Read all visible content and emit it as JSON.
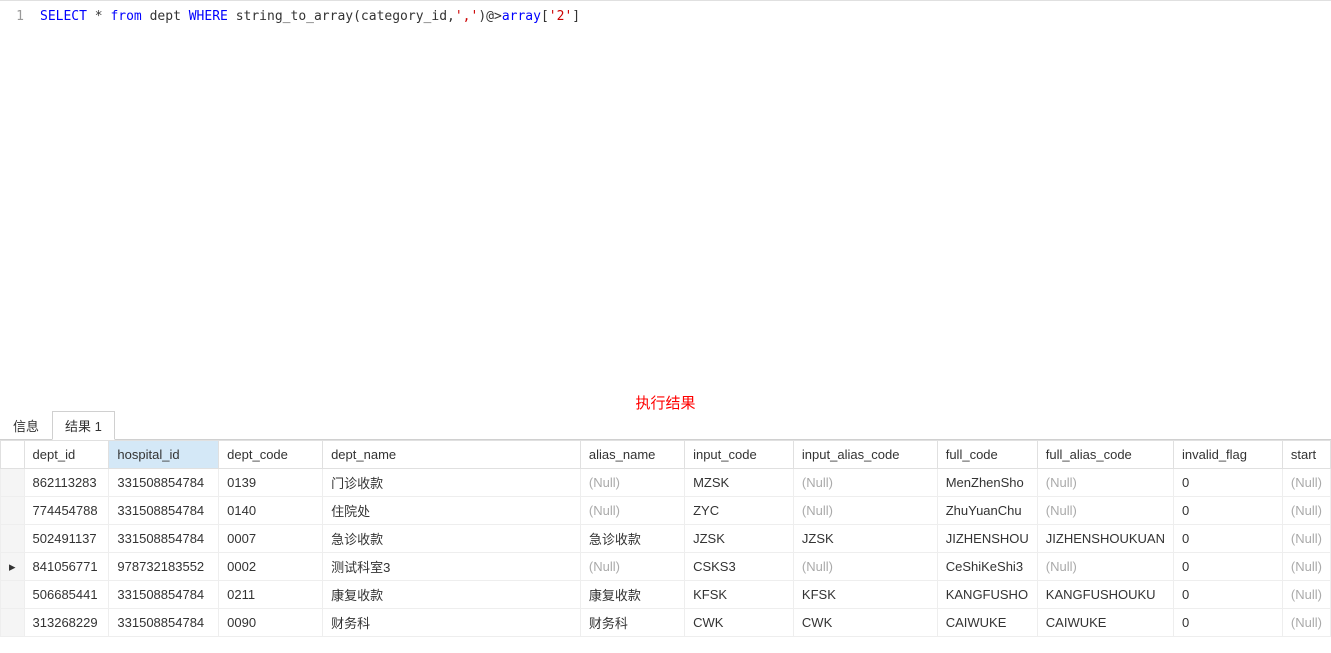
{
  "editor": {
    "line_number": "1",
    "sql_tokens": [
      {
        "text": "SELECT",
        "class": "kw-blue"
      },
      {
        "text": " * ",
        "class": "kw-black"
      },
      {
        "text": "from",
        "class": "kw-blue"
      },
      {
        "text": " dept ",
        "class": "kw-black"
      },
      {
        "text": "WHERE",
        "class": "kw-blue"
      },
      {
        "text": " string_to_array(category_id,",
        "class": "kw-black"
      },
      {
        "text": "','",
        "class": "kw-red"
      },
      {
        "text": ")@>",
        "class": "kw-black"
      },
      {
        "text": "array",
        "class": "kw-blue"
      },
      {
        "text": "[",
        "class": "kw-black"
      },
      {
        "text": "'2'",
        "class": "kw-red"
      },
      {
        "text": "]",
        "class": "kw-black"
      }
    ]
  },
  "result_label": "执行结果",
  "tabs": {
    "info": "信息",
    "result": "结果 1"
  },
  "table": {
    "columns": [
      "dept_id",
      "hospital_id",
      "dept_code",
      "dept_name",
      "alias_name",
      "input_code",
      "input_alias_code",
      "full_code",
      "full_alias_code",
      "invalid_flag",
      "start"
    ],
    "selected_column_index": 1,
    "null_text": "(Null)",
    "rows": [
      {
        "marker": "",
        "dept_id": "862113283",
        "hospital_id": "331508854784",
        "dept_code": "0139",
        "dept_name": "门诊收款",
        "alias_name": null,
        "input_code": "MZSK",
        "input_alias_code": null,
        "full_code": "MenZhenSho",
        "full_alias_code": null,
        "invalid_flag": "0",
        "start": null
      },
      {
        "marker": "",
        "dept_id": "774454788",
        "hospital_id": "331508854784",
        "dept_code": "0140",
        "dept_name": "住院处",
        "alias_name": null,
        "input_code": "ZYC",
        "input_alias_code": null,
        "full_code": "ZhuYuanChu",
        "full_alias_code": null,
        "invalid_flag": "0",
        "start": null
      },
      {
        "marker": "",
        "dept_id": "502491137",
        "hospital_id": "331508854784",
        "dept_code": "0007",
        "dept_name": "急诊收款",
        "alias_name": "急诊收款",
        "input_code": "JZSK",
        "input_alias_code": "JZSK",
        "full_code": "JIZHENSHOU",
        "full_alias_code": "JIZHENSHOUKUAN",
        "invalid_flag": "0",
        "start": null
      },
      {
        "marker": "▸",
        "dept_id": "841056771",
        "hospital_id": "978732183552",
        "dept_code": "0002",
        "dept_name": "测试科室3",
        "alias_name": null,
        "input_code": "CSKS3",
        "input_alias_code": null,
        "full_code": "CeShiKeShi3",
        "full_alias_code": null,
        "invalid_flag": "0",
        "start": null
      },
      {
        "marker": "",
        "dept_id": "506685441",
        "hospital_id": "331508854784",
        "dept_code": "0211",
        "dept_name": "康复收款",
        "alias_name": "康复收款",
        "input_code": "KFSK",
        "input_alias_code": "KFSK",
        "full_code": "KANGFUSHO",
        "full_alias_code": "KANGFUSHOUKU",
        "invalid_flag": "0",
        "start": null
      },
      {
        "marker": "",
        "dept_id": "313268229",
        "hospital_id": "331508854784",
        "dept_code": "0090",
        "dept_name": "财务科",
        "alias_name": "财务科",
        "input_code": "CWK",
        "input_alias_code": "CWK",
        "full_code": "CAIWUKE",
        "full_alias_code": "CAIWUKE",
        "invalid_flag": "0",
        "start": null
      }
    ]
  }
}
